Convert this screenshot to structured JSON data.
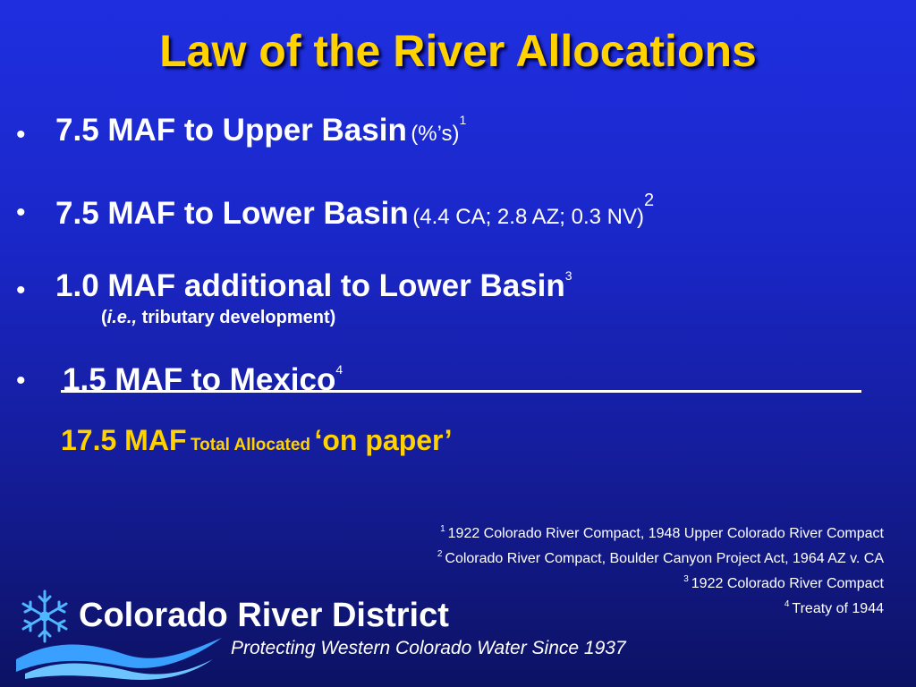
{
  "slide": {
    "title": "Law of the River Allocations",
    "bullet_symbol": "•",
    "bullets": [
      {
        "main": "7.5 MAF to Upper Basin",
        "note": "(%’s)",
        "footnote": "1"
      },
      {
        "main": "7.5 MAF to Lower Basin",
        "note": "(4.4 CA; 2.8 AZ; 0.3 NV)",
        "footnote": "2"
      },
      {
        "main": "1.0 MAF additional to Lower Basin",
        "note": "",
        "footnote": "3"
      },
      {
        "main": "1.5 MAF to Mexico",
        "note": "",
        "footnote": "4"
      }
    ],
    "sub_note": {
      "open": "(",
      "italic": "i.e.,",
      "rest": " tributary development)"
    },
    "total": {
      "amount": "17.5 MAF",
      "label": "Total Allocated",
      "suffix": "‘on paper’"
    },
    "footnotes": [
      {
        "num": "1",
        "text": "1922 Colorado River Compact, 1948 Upper Colorado River Compact"
      },
      {
        "num": "2",
        "text": "Colorado River Compact, Boulder Canyon Project Act, 1964 AZ v. CA"
      },
      {
        "num": "3",
        "text": "1922 Colorado River Compact"
      },
      {
        "num": "4",
        "text": "Treaty of 1944"
      }
    ]
  },
  "logo": {
    "name": "Colorado River District",
    "tagline": "Protecting Western Colorado Water Since 1937",
    "icon": "snowflake-icon"
  },
  "colors": {
    "title": "#ffd200",
    "accent": "#ffd200",
    "text": "#ffffff",
    "background_top": "#1f2fe0",
    "background_bottom": "#0c1263"
  }
}
